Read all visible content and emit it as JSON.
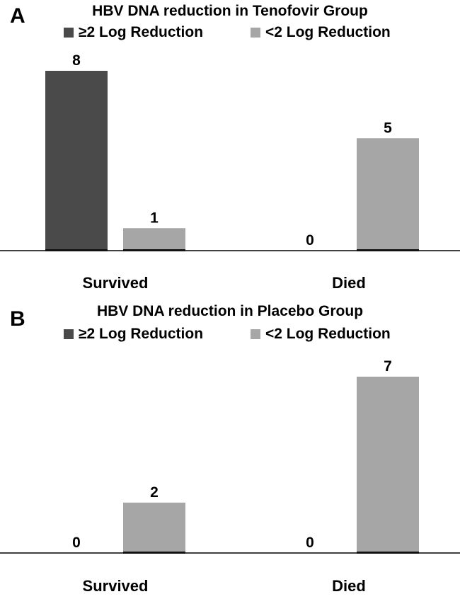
{
  "colors": {
    "dark": "#4a4a4a",
    "light": "#a6a6a6",
    "axis": "#000000"
  },
  "panels": [
    {
      "letter": "A",
      "legend": [
        "≥2 Log Reduction",
        "<2 Log Reduction"
      ],
      "chart_data": {
        "type": "bar",
        "title": "HBV DNA reduction in Tenofovir Group",
        "categories": [
          "Survived",
          "Died"
        ],
        "series": [
          {
            "name": "≥2 Log Reduction",
            "values": [
              8,
              0
            ]
          },
          {
            "name": "<2 Log Reduction",
            "values": [
              1,
              5
            ]
          }
        ],
        "ylim": [
          0,
          8
        ],
        "xlabel": "",
        "ylabel": "",
        "legend": "top",
        "grid": false
      }
    },
    {
      "letter": "B",
      "legend": [
        "≥2 Log Reduction",
        "<2 Log Reduction"
      ],
      "chart_data": {
        "type": "bar",
        "title": "HBV DNA reduction in Placebo Group",
        "categories": [
          "Survived",
          "Died"
        ],
        "series": [
          {
            "name": "≥2 Log Reduction",
            "values": [
              0,
              0
            ]
          },
          {
            "name": "<2 Log Reduction",
            "values": [
              2,
              7
            ]
          }
        ],
        "ylim": [
          0,
          7
        ],
        "xlabel": "",
        "ylabel": "",
        "legend": "top",
        "grid": false
      }
    }
  ]
}
